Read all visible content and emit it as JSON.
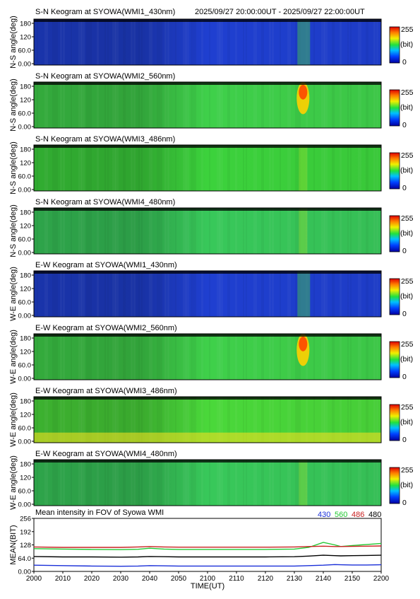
{
  "header": {
    "time_range": "2025/09/27 20:00:00UT - 2025/09/27 22:00:00UT"
  },
  "keograms": [
    {
      "title": "S-N Keogram at SYOWA(WMI1_430nm)",
      "ylabel": "N-S angle(deg)",
      "yticks": [
        "0.00",
        "60.0",
        "120",
        "180"
      ],
      "base_color": "#1f3fd0",
      "cbar_max": "255",
      "cbar_unit": "(bit)",
      "cbar_min": "0"
    },
    {
      "title": "S-N Keogram at SYOWA(WMI2_560nm)",
      "ylabel": "N-S angle(deg)",
      "yticks": [
        "0.00",
        "60.0",
        "120",
        "180"
      ],
      "base_color": "#3fd04a",
      "cbar_max": "255",
      "cbar_unit": "(bit)",
      "cbar_min": "0"
    },
    {
      "title": "S-N Keogram at SYOWA(WMI3_486nm)",
      "ylabel": "N-S angle(deg)",
      "yticks": [
        "0.00",
        "60.0",
        "120",
        "180"
      ],
      "base_color": "#3cd23c",
      "cbar_max": "255",
      "cbar_unit": "(bit)",
      "cbar_min": "0"
    },
    {
      "title": "S-N Keogram at SYOWA(WMI4_480nm)",
      "ylabel": "N-S angle(deg)",
      "yticks": [
        "0.00",
        "60.0",
        "120",
        "180"
      ],
      "base_color": "#38c85a",
      "cbar_max": "255",
      "cbar_unit": "(bit)",
      "cbar_min": "0"
    },
    {
      "title": "E-W Keogram at SYOWA(WMI1_430nm)",
      "ylabel": "W-E angle(deg)",
      "yticks": [
        "0.00",
        "60.0",
        "120",
        "180"
      ],
      "base_color": "#1f3fd0",
      "cbar_max": "255",
      "cbar_unit": "(bit)",
      "cbar_min": "0"
    },
    {
      "title": "E-W Keogram at SYOWA(WMI2_560nm)",
      "ylabel": "W-E angle(deg)",
      "yticks": [
        "0.00",
        "60.0",
        "120",
        "180"
      ],
      "base_color": "#3fd04a",
      "cbar_max": "255",
      "cbar_unit": "(bit)",
      "cbar_min": "0"
    },
    {
      "title": "E-W Keogram at SYOWA(WMI3_486nm)",
      "ylabel": "W-E angle(deg)",
      "yticks": [
        "0.00",
        "60.0",
        "120",
        "180"
      ],
      "base_color": "#4ad83a",
      "cbar_max": "255",
      "cbar_unit": "(bit)",
      "cbar_min": "0"
    },
    {
      "title": "E-W Keogram at SYOWA(WMI4_480nm)",
      "ylabel": "W-E angle(deg)",
      "yticks": [
        "0.00",
        "60.0",
        "120",
        "180"
      ],
      "base_color": "#38c85a",
      "cbar_max": "255",
      "cbar_unit": "(bit)",
      "cbar_min": "0"
    }
  ],
  "chart_data": {
    "type": "line",
    "title": "Mean intensity in FOV of Syowa WMI",
    "xlabel": "TIME(UT)",
    "ylabel": "MEAN(BIT)",
    "x_ticks": [
      "2000",
      "2010",
      "2020",
      "2030",
      "2040",
      "2050",
      "2100",
      "2110",
      "2120",
      "2130",
      "2140",
      "2150",
      "2200"
    ],
    "y_ticks": [
      "0.00",
      "64.0",
      "128",
      "192",
      "256"
    ],
    "ylim": [
      0,
      256
    ],
    "x": [
      0,
      10,
      20,
      30,
      36,
      40,
      45,
      50,
      60,
      70,
      80,
      90,
      95,
      100,
      104,
      106,
      110,
      115,
      120
    ],
    "series": [
      {
        "name": "430",
        "color": "#1a2fd8",
        "values": [
          30,
          28,
          26,
          25,
          26,
          28,
          27,
          26,
          26,
          26,
          26,
          26,
          28,
          30,
          33,
          32,
          31,
          31,
          32
        ]
      },
      {
        "name": "560",
        "color": "#22c832",
        "values": [
          110,
          108,
          106,
          105,
          107,
          112,
          108,
          106,
          106,
          106,
          106,
          108,
          116,
          140,
          128,
          120,
          125,
          130,
          135
        ]
      },
      {
        "name": "486",
        "color": "#c82020",
        "values": [
          118,
          116,
          116,
          116,
          118,
          120,
          118,
          117,
          117,
          117,
          117,
          118,
          120,
          122,
          120,
          120,
          121,
          122,
          123
        ]
      },
      {
        "name": "480",
        "color": "#000000",
        "values": [
          72,
          70,
          70,
          69,
          70,
          72,
          71,
          70,
          70,
          70,
          70,
          71,
          74,
          78,
          76,
          75,
          76,
          77,
          78
        ]
      }
    ]
  }
}
